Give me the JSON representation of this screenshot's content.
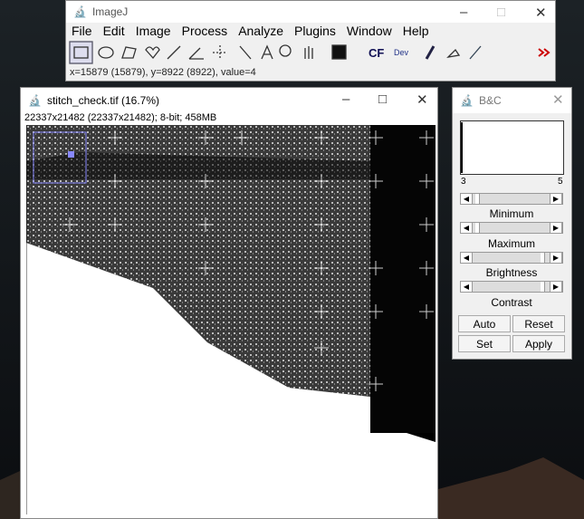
{
  "imagej": {
    "title": "ImageJ",
    "menu": [
      "File",
      "Edit",
      "Image",
      "Process",
      "Analyze",
      "Plugins",
      "Window",
      "Help"
    ],
    "toolbar_labels": [
      "CF",
      "Dev"
    ],
    "status": "x=15879 (15879), y=8922 (8922), value=4"
  },
  "image_window": {
    "title": "stitch_check.tif (16.7%)",
    "info": "22337x21482  (22337x21482); 8-bit; 458MB"
  },
  "bc_window": {
    "title": "B&C",
    "range_min": "3",
    "range_max": "5",
    "sliders": [
      "Minimum",
      "Maximum",
      "Brightness",
      "Contrast"
    ],
    "buttons": [
      "Auto",
      "Reset",
      "Set",
      "Apply"
    ]
  }
}
